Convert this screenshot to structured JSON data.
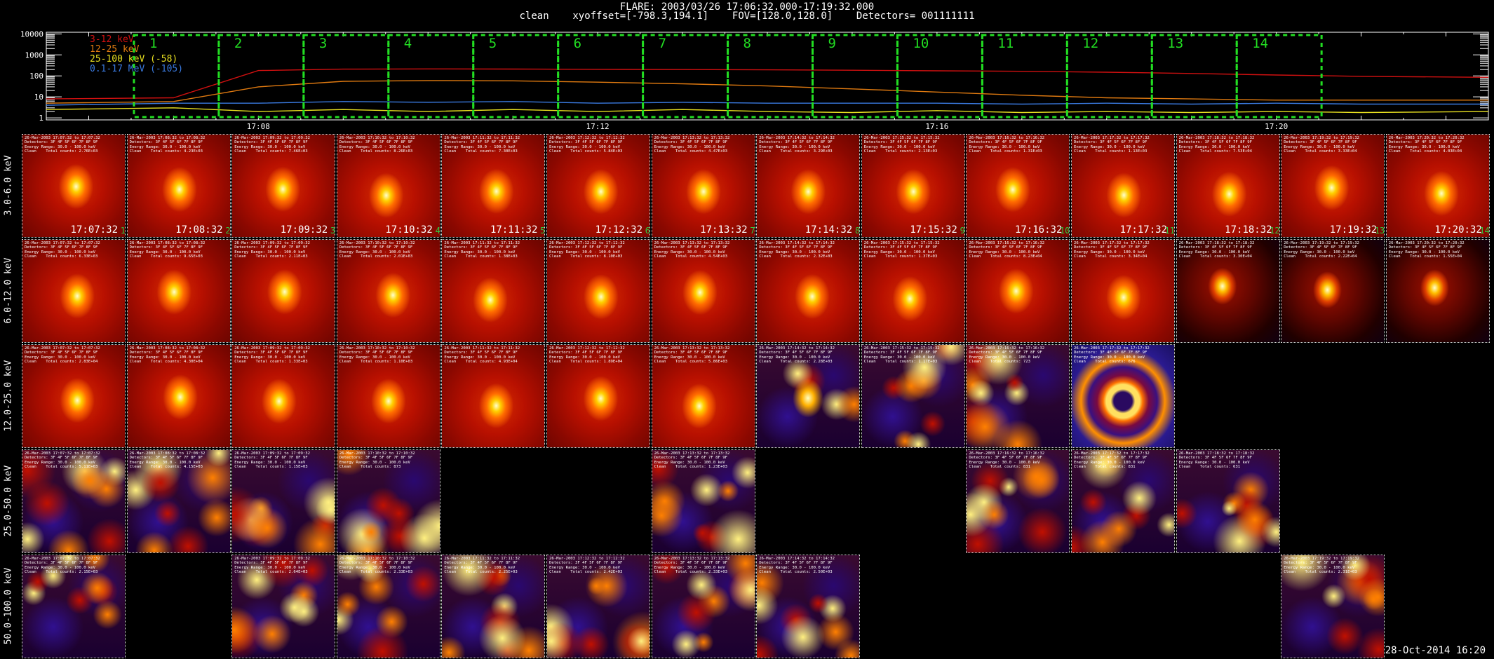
{
  "header": {
    "line1": "FLARE: 2003/03/26 17:06:32.000-17:19:32.000",
    "line2": "clean    xyoffset=[-798.3,194.1]    FOV=[128.0,128.0]    Detectors= 001111111"
  },
  "chart_data": {
    "type": "line",
    "title": "",
    "y_scale": "log",
    "ylim": [
      0.8,
      12000
    ],
    "y_ticks": [
      "10000",
      "1000",
      "100",
      "10",
      "1"
    ],
    "x_range": [
      "17:05:30",
      "17:22:30"
    ],
    "x_ticks": [
      "17:08",
      "17:12",
      "17:16",
      "17:20"
    ],
    "series": [
      {
        "name": "3-12 keV",
        "color": "#d01010",
        "x": [
          "17:05:30",
          "17:07:00",
          "17:08:00",
          "17:09:00",
          "17:10:00",
          "17:11:00",
          "17:12:00",
          "17:13:00",
          "17:14:00",
          "17:15:00",
          "17:16:00",
          "17:17:00",
          "17:18:00",
          "17:19:00",
          "17:20:00",
          "17:21:00",
          "17:22:30"
        ],
        "values": [
          8,
          9,
          180,
          210,
          215,
          212,
          205,
          200,
          195,
          185,
          175,
          165,
          150,
          130,
          110,
          95,
          85
        ]
      },
      {
        "name": "12-25 keV",
        "color": "#e07a10",
        "x": [
          "17:05:30",
          "17:07:00",
          "17:08:00",
          "17:09:00",
          "17:10:00",
          "17:11:00",
          "17:12:00",
          "17:13:00",
          "17:14:00",
          "17:15:00",
          "17:16:00",
          "17:17:00",
          "17:18:00",
          "17:19:00",
          "17:20:00",
          "17:21:00",
          "17:22:30"
        ],
        "values": [
          5,
          6,
          30,
          55,
          60,
          58,
          50,
          42,
          33,
          24,
          17,
          12,
          9,
          8,
          7,
          7,
          7
        ]
      },
      {
        "name": "25-100 keV (-58)",
        "color": "#e8e020",
        "x": [
          "17:05:30",
          "17:07:00",
          "17:08:00",
          "17:09:00",
          "17:10:00",
          "17:11:00",
          "17:12:00",
          "17:13:00",
          "17:14:00",
          "17:15:00",
          "17:16:00",
          "17:17:00",
          "17:18:00",
          "17:19:00",
          "17:20:00",
          "17:21:00",
          "17:22:30"
        ],
        "values": [
          2.5,
          3,
          2,
          2.5,
          2,
          2.5,
          2,
          2.5,
          2,
          1.8,
          2.2,
          1.8,
          2,
          1.8,
          2,
          1.8,
          2
        ]
      },
      {
        "name": "0.1-17 MeV (-105)",
        "color": "#3a7ae0",
        "x": [
          "17:05:30",
          "17:07:00",
          "17:08:00",
          "17:09:00",
          "17:10:00",
          "17:11:00",
          "17:12:00",
          "17:13:00",
          "17:14:00",
          "17:15:00",
          "17:16:00",
          "17:17:00",
          "17:18:00",
          "17:19:00",
          "17:20:00",
          "17:21:00",
          "17:22:30"
        ],
        "values": [
          4,
          5,
          5,
          6,
          5.5,
          6,
          5,
          5.5,
          5,
          5,
          5,
          4.5,
          5,
          4.5,
          5,
          4.5,
          4.5
        ]
      }
    ],
    "intervals": [
      {
        "label": "1",
        "start": "17:06:32",
        "end": "17:07:32"
      },
      {
        "label": "2",
        "start": "17:07:32",
        "end": "17:08:32"
      },
      {
        "label": "3",
        "start": "17:08:32",
        "end": "17:09:32"
      },
      {
        "label": "4",
        "start": "17:09:32",
        "end": "17:10:32"
      },
      {
        "label": "5",
        "start": "17:10:32",
        "end": "17:11:32"
      },
      {
        "label": "6",
        "start": "17:11:32",
        "end": "17:12:32"
      },
      {
        "label": "7",
        "start": "17:12:32",
        "end": "17:13:32"
      },
      {
        "label": "8",
        "start": "17:13:32",
        "end": "17:14:32"
      },
      {
        "label": "9",
        "start": "17:14:32",
        "end": "17:15:32"
      },
      {
        "label": "10",
        "start": "17:15:32",
        "end": "17:16:32"
      },
      {
        "label": "11",
        "start": "17:16:32",
        "end": "17:17:32"
      },
      {
        "label": "12",
        "start": "17:17:32",
        "end": "17:18:32"
      },
      {
        "label": "13",
        "start": "17:18:32",
        "end": "17:19:32"
      },
      {
        "label": "14",
        "start": "17:19:32",
        "end": "17:20:32"
      }
    ]
  },
  "image_grid": {
    "timestamps": [
      "17:07:32",
      "17:08:32",
      "17:09:32",
      "17:10:32",
      "17:11:32",
      "17:12:32",
      "17:13:32",
      "17:14:32",
      "17:15:32",
      "17:16:32",
      "17:17:32",
      "17:18:32",
      "17:19:32",
      "17:20:32"
    ],
    "rows": [
      {
        "label": "3.0-6.0 keV",
        "present": [
          1,
          2,
          3,
          4,
          5,
          6,
          7,
          8,
          9,
          10,
          11,
          12,
          13,
          14
        ],
        "style": [
          "blob",
          "blob",
          "blob",
          "blob",
          "blob",
          "blob",
          "blob",
          "blob",
          "blob",
          "blob",
          "blob",
          "blob",
          "blob",
          "blob"
        ]
      },
      {
        "label": "6.0-12.0 keV",
        "present": [
          1,
          2,
          3,
          4,
          5,
          6,
          7,
          8,
          9,
          10,
          11,
          12,
          13,
          14
        ],
        "style": [
          "blob",
          "blob",
          "blob",
          "blob",
          "blob",
          "blob",
          "blob",
          "blob",
          "blob",
          "blob",
          "blob",
          "dark",
          "dark",
          "dark"
        ]
      },
      {
        "label": "12.0-25.0 keV",
        "present": [
          1,
          2,
          3,
          4,
          5,
          6,
          7,
          8,
          9,
          10,
          11
        ],
        "style": [
          "blob",
          "blob",
          "blob",
          "blob",
          "blob",
          "blob",
          "blob",
          "spotty",
          "noise",
          "noise",
          "ring"
        ]
      },
      {
        "label": "25.0-50.0 keV",
        "present": [
          1,
          2,
          3,
          4,
          7,
          10,
          11,
          12
        ],
        "style": [
          "noise",
          "noise",
          "noise",
          "noise",
          "noise",
          "noise",
          "noise",
          "noise"
        ]
      },
      {
        "label": "50.0-100.0 keV",
        "present": [
          1,
          3,
          4,
          5,
          6,
          7,
          8,
          13
        ],
        "style": [
          "noise",
          "noise",
          "noise",
          "noise",
          "noise",
          "noise",
          "noise",
          "noise"
        ]
      }
    ],
    "tile_meta": {
      "detectors": "Detectors: 3F 4F 5F 6F 7F 8F 9F",
      "energy_template": "Energy Range: 30.0 - 100.0 keV",
      "clean_template": "Clean    Total counts: "
    },
    "counts": [
      [
        "2.76E+03",
        "4.23E+03",
        "7.46E+03",
        "8.26E+03",
        "7.30E+03",
        "5.84E+03",
        "4.47E+03",
        "3.29E+03",
        "2.13E+03",
        "1.31E+03",
        "1.13E+03",
        "7.53E+04",
        "3.33E+04",
        "4.03E+04"
      ],
      [
        "6.33E+03",
        "9.65E+03",
        "2.11E+03",
        "2.01E+03",
        "1.38E+03",
        "8.10E+03",
        "4.54E+03",
        "2.32E+03",
        "1.37E+03",
        "8.23E+04",
        "3.34E+04",
        "3.30E+04",
        "2.22E+04",
        "1.55E+04"
      ],
      [
        "2.83E+04",
        "4.30E+04",
        "1.33E+03",
        "1.10E+03",
        "4.93E+04",
        "1.89E+04",
        "5.86E+03",
        "2.28E+03",
        "1.17E+03",
        "723",
        "676"
      ],
      [
        "5.11E+03",
        "4.15E+03",
        "1.15E+03",
        "873",
        "",
        "",
        "1.23E+03",
        "",
        "",
        "831",
        "831",
        "631"
      ],
      [
        "2.15E+03",
        "",
        "2.64E+03",
        "2.33E+03",
        "2.25E+03",
        "2.42E+03",
        "2.33E+03",
        "2.50E+03",
        "",
        "",
        "",
        "",
        "2.31E+03"
      ]
    ]
  },
  "footer": {
    "text": "28-Oct-2014 16:20"
  }
}
